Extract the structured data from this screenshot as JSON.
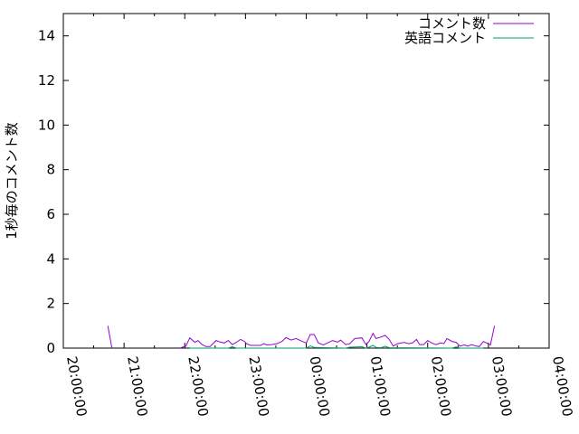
{
  "chart_data": {
    "type": "line",
    "title": "",
    "xlabel": "",
    "ylabel": "1秒毎のコメント数",
    "xlim": [
      "20:00:00",
      "04:00:00"
    ],
    "ylim": [
      0,
      15
    ],
    "x_ticks": [
      "20:00:00",
      "21:00:00",
      "22:00:00",
      "23:00:00",
      "00:00:00",
      "01:00:00",
      "02:00:00",
      "03:00:00",
      "04:00:00"
    ],
    "y_ticks": [
      "0",
      "2",
      "4",
      "6",
      "8",
      "10",
      "12",
      "14"
    ],
    "grid": false,
    "legend": "top-right",
    "series": [
      {
        "name": "コメント数",
        "color": "#9400d3",
        "segments": [
          {
            "x": [
              "20:44",
              "20:48"
            ],
            "y": [
              1.0,
              0
            ]
          },
          {
            "x": [
              "21:55",
              "22:01",
              "22:05",
              "22:10",
              "22:13",
              "22:17",
              "22:21",
              "22:25",
              "22:31",
              "22:35",
              "22:39",
              "22:43",
              "22:47",
              "22:51",
              "22:55",
              "22:59",
              "23:01",
              "23:05",
              "23:15",
              "23:18",
              "23:21",
              "23:26",
              "23:31",
              "23:36",
              "23:40",
              "23:45",
              "23:50",
              "23:56",
              "00:00",
              "00:04",
              "00:08",
              "00:12",
              "00:17",
              "00:21",
              "00:26",
              "00:31",
              "00:34",
              "00:39",
              "00:43",
              "00:48",
              "00:55",
              "00:59",
              "01:02",
              "01:06",
              "01:09",
              "01:14",
              "01:18",
              "01:22",
              "01:26",
              "01:30",
              "01:37",
              "01:41",
              "01:45",
              "01:49",
              "01:52",
              "01:56",
              "02:00",
              "02:04",
              "02:08",
              "02:13",
              "02:16",
              "02:19",
              "02:24",
              "02:28",
              "02:32",
              "02:36",
              "02:40",
              "02:43",
              "02:48",
              "02:51",
              "02:55",
              "02:58",
              "03:02",
              "03:06"
            ],
            "y": [
              0,
              0.09,
              0.46,
              0.26,
              0.34,
              0.16,
              0.07,
              0.07,
              0.34,
              0.27,
              0.23,
              0.34,
              0.16,
              0.26,
              0.39,
              0.3,
              0.2,
              0.12,
              0.12,
              0.2,
              0.14,
              0.16,
              0.2,
              0.3,
              0.47,
              0.36,
              0.43,
              0.3,
              0.23,
              0.61,
              0.61,
              0.23,
              0.14,
              0.23,
              0.34,
              0.27,
              0.36,
              0.16,
              0.2,
              0.43,
              0.46,
              0.16,
              0.3,
              0.66,
              0.43,
              0.5,
              0.57,
              0.39,
              0.09,
              0.2,
              0.26,
              0.2,
              0.23,
              0.39,
              0.16,
              0.16,
              0.34,
              0.23,
              0.16,
              0.23,
              0.2,
              0.43,
              0.3,
              0.26,
              0.09,
              0.14,
              0.09,
              0.16,
              0.09,
              0.07,
              0.3,
              0.23,
              0.14,
              1.0
            ]
          }
        ]
      },
      {
        "name": "英語コメント",
        "color": "#009e73",
        "segments": [
          {
            "x": [
              "22:05",
              "22:43",
              "22:47",
              "22:51",
              "23:56",
              "00:00",
              "00:04",
              "00:08",
              "00:39",
              "00:43",
              "00:55",
              "00:59",
              "01:02",
              "01:06",
              "01:09",
              "01:14",
              "01:18",
              "01:22",
              "02:24",
              "02:28",
              "02:32",
              "02:55"
            ],
            "y": [
              0,
              0,
              0.06,
              0,
              0,
              0,
              0.1,
              0.03,
              0,
              0.04,
              0.06,
              0,
              0.04,
              0.12,
              0.03,
              0.02,
              0.08,
              0.02,
              0,
              0.05,
              0,
              0
            ]
          }
        ]
      }
    ]
  }
}
